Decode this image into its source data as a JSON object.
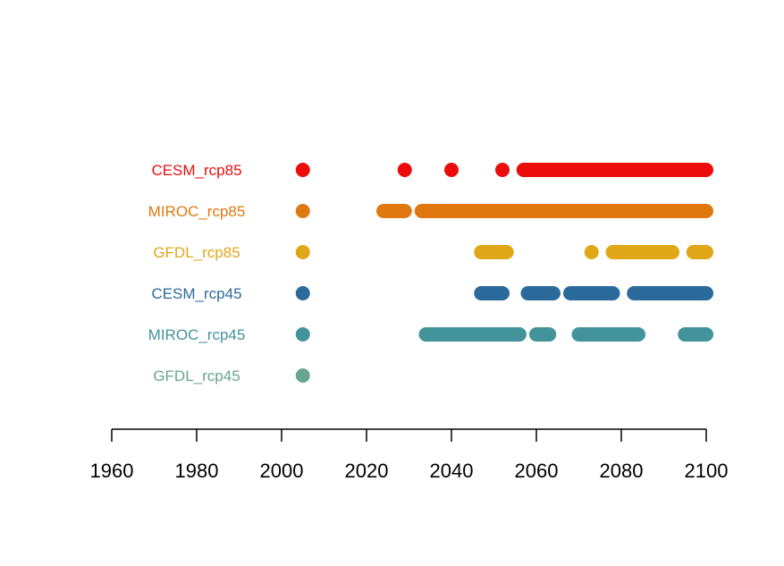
{
  "chart_data": {
    "type": "timeline",
    "title": "",
    "xlabel": "",
    "ylabel": "",
    "xlim": [
      1960,
      2100
    ],
    "x_ticks": [
      1960,
      1980,
      2000,
      2020,
      2040,
      2060,
      2080,
      2100
    ],
    "x_tick_labels": [
      "1960",
      "1980",
      "2000",
      "2020",
      "2040",
      "2060",
      "2080",
      "2100"
    ],
    "grid": false,
    "series": [
      {
        "name": "CESM_rcp85",
        "color": "#ec0c0c",
        "points": [
          2005
        ],
        "segments": [
          [
            2029,
            2029
          ],
          [
            2040,
            2040
          ],
          [
            2052,
            2052
          ],
          [
            2057,
            2100
          ]
        ]
      },
      {
        "name": "MIROC_rcp85",
        "color": "#e07810",
        "points": [
          2005
        ],
        "segments": [
          [
            2024,
            2029
          ],
          [
            2033,
            2100
          ]
        ]
      },
      {
        "name": "GFDL_rcp85",
        "color": "#e0a718",
        "points": [
          2005
        ],
        "segments": [
          [
            2047,
            2053
          ],
          [
            2073,
            2073
          ],
          [
            2078,
            2092
          ],
          [
            2097,
            2100
          ]
        ]
      },
      {
        "name": "CESM_rcp45",
        "color": "#2b6b9b",
        "points": [
          2005
        ],
        "segments": [
          [
            2047,
            2052
          ],
          [
            2058,
            2064
          ],
          [
            2068,
            2078
          ],
          [
            2083,
            2100
          ]
        ]
      },
      {
        "name": "MIROC_rcp45",
        "color": "#43939a",
        "points": [
          2005
        ],
        "segments": [
          [
            2034,
            2056
          ],
          [
            2060,
            2063
          ],
          [
            2070,
            2084
          ],
          [
            2095,
            2100
          ]
        ]
      },
      {
        "name": "GFDL_rcp45",
        "color": "#67a591",
        "points": [
          2005
        ],
        "segments": []
      }
    ]
  }
}
